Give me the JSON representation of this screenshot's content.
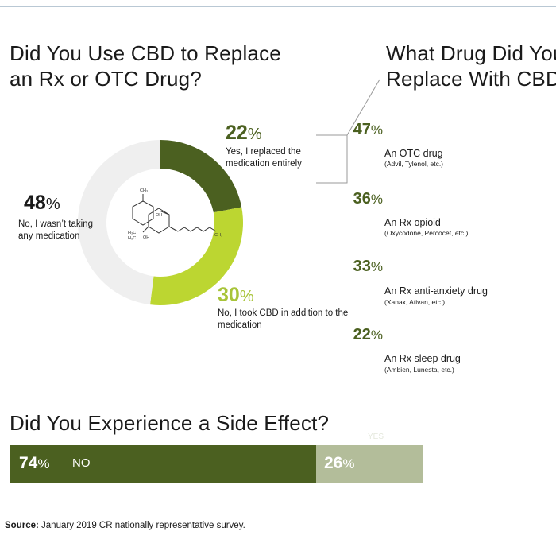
{
  "titles": {
    "left": "Did You Use CBD to Replace an Rx or OTC Drug?",
    "right_line1": "What Drug Did You",
    "right_line2": "Replace With CBD?",
    "side_effect": "Did You Experience a Side Effect?"
  },
  "colors": {
    "dark_green": "#4b6020",
    "lime": "#bcd631",
    "light_gray": "#efefef",
    "pale_green": "#b3bd9a"
  },
  "icons": {
    "molecule": "cbd-molecule-icon"
  },
  "molecule_labels": {
    "ch3_top": "CH₃",
    "oh_right": "OH",
    "oh_bottom": "OH",
    "h3c_a": "H₃C",
    "h3c_b": "H₃C",
    "ch3_tail": "CH₃"
  },
  "chart_data": [
    {
      "type": "pie",
      "title": "Did You Use CBD to Replace an Rx or OTC Drug?",
      "slices": [
        {
          "pct_value": "22",
          "percent_sign": "%",
          "value": 22,
          "label": "Yes, I replaced the medication entirely",
          "color": "#4b6020"
        },
        {
          "pct_value": "30",
          "percent_sign": "%",
          "value": 30,
          "label": "No, I took CBD in addition to the medication",
          "color": "#bcd631"
        },
        {
          "pct_value": "48",
          "percent_sign": "%",
          "value": 48,
          "label": "No, I wasn’t taking any medication",
          "color": "#efefef"
        }
      ]
    },
    {
      "type": "bar",
      "title": "What Drug Did You Replace With CBD?",
      "items": [
        {
          "name": "An OTC drug",
          "examples": "(Advil, Tylenol, etc.)",
          "pct_value": "47",
          "percent_sign": "%",
          "value": 47
        },
        {
          "name": "An Rx opioid",
          "examples": "(Oxycodone, Percocet, etc.)",
          "pct_value": "36",
          "percent_sign": "%",
          "value": 36
        },
        {
          "name": "An Rx anti-anxiety drug",
          "examples": "(Xanax, Ativan, etc.)",
          "pct_value": "33",
          "percent_sign": "%",
          "value": 33
        },
        {
          "name": "An Rx sleep drug",
          "examples": "(Ambien, Lunesta, etc.)",
          "pct_value": "22",
          "percent_sign": "%",
          "value": 22
        }
      ]
    },
    {
      "type": "bar",
      "title": "Did You Experience a Side Effect?",
      "segments": [
        {
          "label": "NO",
          "pct_value": "74",
          "percent_sign": "%",
          "value": 74,
          "color": "#4b6020"
        },
        {
          "label": "YES",
          "pct_value": "26",
          "percent_sign": "%",
          "value": 26,
          "color": "#b3bd9a"
        }
      ]
    }
  ],
  "source": {
    "label": "Source:",
    "text": "January 2019 CR nationally representative survey."
  }
}
